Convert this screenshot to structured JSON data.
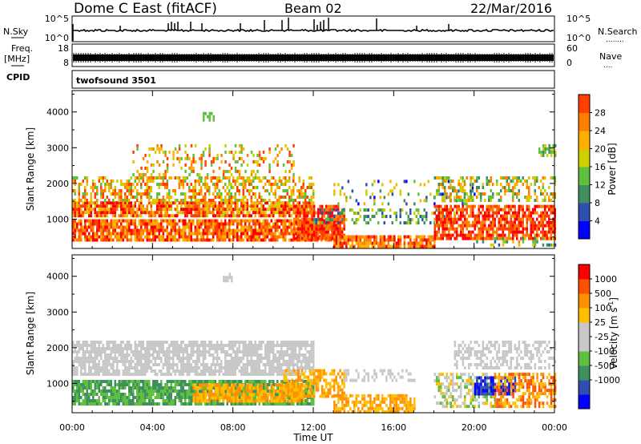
{
  "header": {
    "station": "Dome C East (fitACF)",
    "beam": "Beam 02",
    "date": "22/Mar/2016"
  },
  "panels": {
    "nsky_label": "N.Sky",
    "nsearch_label": "N.Search",
    "nsearch_dots": "........",
    "noise_ticks": [
      "10^5",
      "10^0"
    ],
    "freq_label": "Freq.",
    "freq_unit": "[MHz]",
    "freq_ticks": [
      "18",
      "8"
    ],
    "nave_label": "Nave",
    "nave_dots": "....",
    "nave_ticks": [
      "60",
      "0"
    ],
    "cpid_label": "CPID",
    "cpid_value": "twofsound 3501"
  },
  "colors": {
    "power_scale": [
      "#0000ff",
      "#2f4faf",
      "#3f8f5f",
      "#5fbf3f",
      "#cfcf00",
      "#ffaf00",
      "#ff7f00",
      "#ff4000",
      "#ff0000"
    ],
    "velocity_scale": [
      "#ff0000",
      "#ff5000",
      "#ff9000",
      "#ffbf00",
      "#c8c8c8",
      "#c8c8c8",
      "#5fbf3f",
      "#3f8f5f",
      "#2f4faf",
      "#0000ff"
    ]
  },
  "chart_data": [
    {
      "type": "heatmap",
      "title": "",
      "xlabel": "Time UT",
      "ylabel": "Slant Range [km]",
      "colorbar_label": "Power [dB]",
      "xticks": [
        "00:00",
        "04:00",
        "08:00",
        "12:00",
        "16:00",
        "20:00",
        "00:00"
      ],
      "yticks": [
        "1000",
        "2000",
        "3000",
        "4000"
      ],
      "ylim": [
        180,
        4600
      ],
      "colorbar_ticks": [
        "4",
        "8",
        "12",
        "16",
        "20",
        "24",
        "28"
      ],
      "colorbar_range": [
        0,
        32
      ],
      "grid": false
    },
    {
      "type": "heatmap",
      "title": "",
      "xlabel": "Time UT",
      "ylabel": "Slant Range [km]",
      "colorbar_label": "Velocity [m s-1]",
      "colorbar_label_parts": {
        "base": "Velocity [m s",
        "sup": "-1",
        "end": "]"
      },
      "xticks": [
        "00:00",
        "04:00",
        "08:00",
        "12:00",
        "16:00",
        "20:00",
        "00:00"
      ],
      "yticks": [
        "1000",
        "2000",
        "3000",
        "4000"
      ],
      "ylim": [
        180,
        4600
      ],
      "colorbar_ticks": [
        "1000",
        "500",
        "100",
        "25",
        "-25",
        "-100",
        "-500",
        "-1000"
      ],
      "grid": false
    }
  ]
}
